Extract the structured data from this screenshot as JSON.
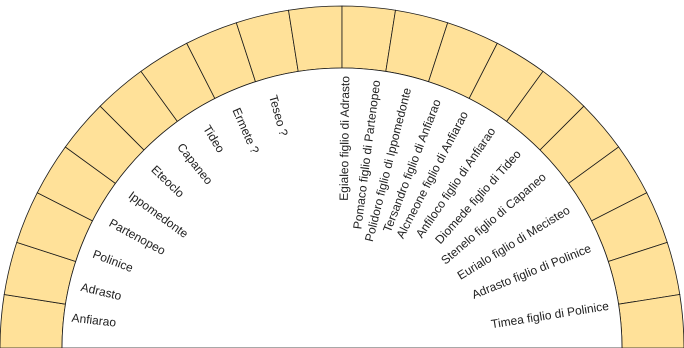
{
  "diagram": {
    "segment_count": 20,
    "colors": {
      "band": "#ffe199",
      "stroke": "#1a1a1a",
      "background": "#ffffff",
      "text": "#222222"
    },
    "left_labels": [
      "Anfiarao",
      "Adrasto",
      "Polinice",
      "Partenopeo",
      "Ippomedonte",
      "Eteoclo",
      "Capaneo",
      "Tideo",
      "Ermete ?",
      "Teseo ?"
    ],
    "right_labels": [
      "Egialeo figlio di Adrasto",
      "Pomaco figlio di Partenopeo",
      "Polidoro figlio di Ippomedonte",
      "Tersandro figlio di Anfiarao",
      "Alcmeone figlio di Anfiarao",
      "Anfiloco figlio di Anfiarao",
      "Diomede figlio di Tideo",
      "Stenelo figlio di Capaneo",
      "Eurialo figlio di Mecisteo",
      "Adrasto figlio di Polinice",
      "Timea figlio di Polinice"
    ]
  }
}
